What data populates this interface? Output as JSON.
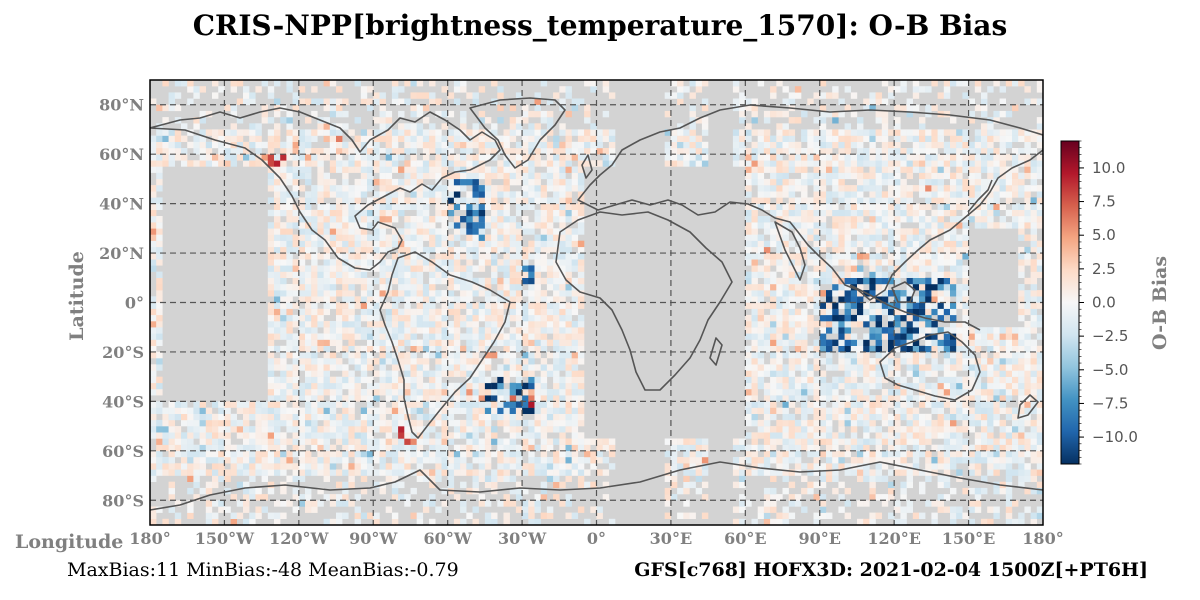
{
  "title": "CRIS-NPP[brightness_temperature_1570]: O-B Bias",
  "axes": {
    "ylabel": "Latitude",
    "xlabel": "Longitude",
    "lat_ticks": [
      "80°N",
      "60°N",
      "40°N",
      "20°N",
      "0°",
      "20°S",
      "40°S",
      "60°S",
      "80°S"
    ],
    "lon_ticks": [
      "180°",
      "150°W",
      "120°W",
      "90°W",
      "60°W",
      "30°W",
      "0°",
      "30°E",
      "60°E",
      "90°E",
      "120°E",
      "150°E",
      "180°"
    ]
  },
  "colorbar": {
    "label": "O-B Bias",
    "range": [
      -12,
      12
    ],
    "ticks": [
      "10.0",
      "7.5",
      "5.0",
      "2.5",
      "0.0",
      "−2.5",
      "−5.0",
      "−7.5",
      "−10.0"
    ],
    "tick_values": [
      10,
      7.5,
      5,
      2.5,
      0,
      -2.5,
      -5,
      -7.5,
      -10
    ],
    "colormap": "RdBu_r"
  },
  "footer": {
    "stats": "MaxBias:11 MinBias:-48 MeanBias:-0.79",
    "run_info": "GFS[c768] HOFX3D: 2021-02-04 1500Z[+PT6H]"
  },
  "colors": {
    "no_data": "#d3d3d3",
    "coastline": "#555555",
    "grid": "#555555",
    "tick_text": "#808080"
  },
  "chart_data": {
    "type": "heatmap",
    "title": "CRIS-NPP[brightness_temperature_1570]: O-B Bias",
    "xlabel": "Longitude",
    "ylabel": "Latitude",
    "xlim": [
      -180,
      180
    ],
    "ylim": [
      -90,
      90
    ],
    "grid": true,
    "value_range": [
      -12,
      12
    ],
    "swaths_no_data_lon": [
      [
        -5,
        40
      ],
      [
        40,
        60
      ]
    ],
    "strong_negative_regions": [
      {
        "lon": [
          -60,
          -45
        ],
        "lat": [
          25,
          50
        ]
      },
      {
        "lon": [
          -45,
          -25
        ],
        "lat": [
          -45,
          -30
        ]
      },
      {
        "lon": [
          90,
          145
        ],
        "lat": [
          -20,
          10
        ]
      },
      {
        "lon": [
          -30,
          -25
        ],
        "lat": [
          5,
          15
        ]
      }
    ],
    "strong_positive_regions": [
      {
        "lon": [
          -135,
          -125
        ],
        "lat": [
          55,
          60
        ]
      },
      {
        "lon": [
          -80,
          -70
        ],
        "lat": [
          -60,
          -50
        ]
      },
      {
        "lon": [
          -35,
          -25
        ],
        "lat": [
          -42,
          -38
        ]
      }
    ]
  }
}
